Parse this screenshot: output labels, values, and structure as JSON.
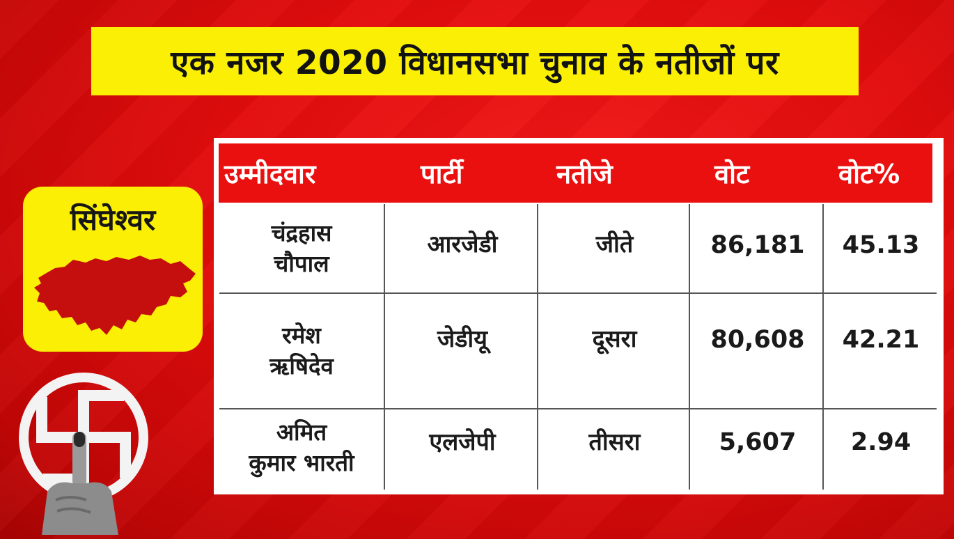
{
  "title": "एक नजर 2020 विधानसभा चुनाव के नतीजों पर",
  "constituency": "सिंघेश्वर",
  "table": {
    "headers": [
      "उम्मीदवार",
      "पार्टी",
      "नतीजे",
      "वोट",
      "वोट%"
    ],
    "rows": [
      {
        "candidate_line1": "चंद्रहास",
        "candidate_line2": "चौपाल",
        "party": "आरजेडी",
        "result": "जीते",
        "votes": "86,181",
        "vote_percent": "45.13"
      },
      {
        "candidate_line1": "रमेश",
        "candidate_line2": "ऋषिदेव",
        "party": "जेडीयू",
        "result": "दूसरा",
        "votes": "80,608",
        "vote_percent": "42.21"
      },
      {
        "candidate_line1": "अमित",
        "candidate_line2": "कुमार भारती",
        "party": "एलजेपी",
        "result": "तीसरा",
        "votes": "5,607",
        "vote_percent": "2.94"
      }
    ]
  },
  "colors": {
    "background_red": "#e20c0c",
    "banner_yellow": "#fbf005",
    "header_red": "#ea1010",
    "map_fill": "#c50f0f"
  },
  "icons": {
    "map": "bihar-map-icon",
    "logo": "election-swastik-logo",
    "finger": "inked-finger-icon"
  }
}
